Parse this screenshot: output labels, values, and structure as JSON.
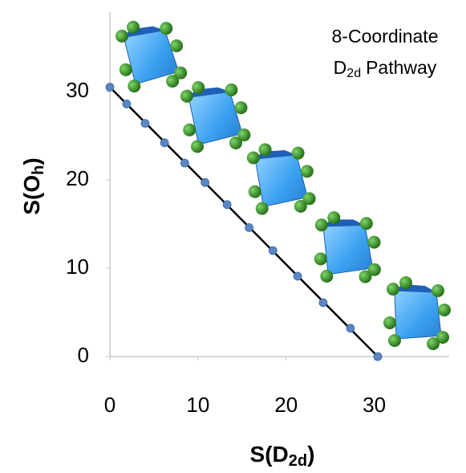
{
  "chart_data": {
    "type": "scatter",
    "title": {
      "line1": "8-Coordinate",
      "line2": {
        "main": "D",
        "sub": "2d",
        "rest": "Pathway"
      }
    },
    "x_label": {
      "main": "S(D",
      "sub": "2d",
      "close": ")"
    },
    "y_label": {
      "main": "S(O",
      "sub": "h",
      "close": ")"
    },
    "x": [
      0,
      1.9,
      4.0,
      6.2,
      8.5,
      10.8,
      13.3,
      15.8,
      18.5,
      21.3,
      24.2,
      27.3,
      30.4
    ],
    "values": [
      30.5,
      28.6,
      26.4,
      24.2,
      21.9,
      19.7,
      17.2,
      14.6,
      12.0,
      9.1,
      6.1,
      3.2,
      0
    ],
    "color": "#5b86c4",
    "line": {
      "x": [
        0,
        30.4
      ],
      "values": [
        30.5,
        0
      ],
      "color": "#000000"
    },
    "xlim": [
      0,
      38.5
    ],
    "ylim": [
      0,
      39
    ],
    "xticks": [
      0,
      10,
      20,
      30
    ],
    "yticks": [
      0,
      10,
      20,
      30
    ],
    "grid": false
  }
}
